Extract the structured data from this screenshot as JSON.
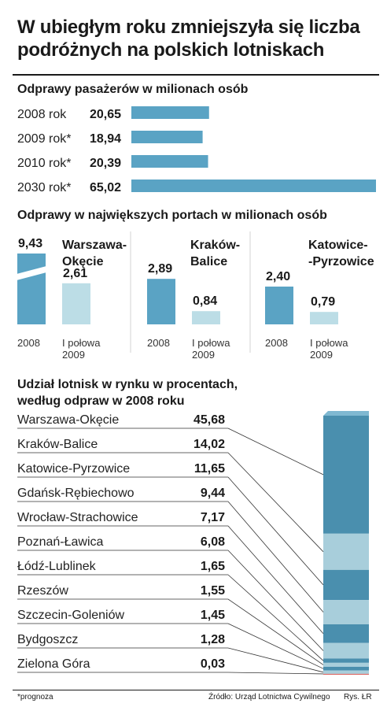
{
  "title": "W ubiegłym roku zmniejszyła się liczba podróżnych na polskich lotniskach",
  "colors": {
    "bar": "#5aa3c4",
    "bar_light": "#bcdde6",
    "stack_dark": "#4a8fae",
    "stack_light": "#a8cedb",
    "divider": "#d3d3d3"
  },
  "chart_data": [
    {
      "type": "bar",
      "title": "Odprawy pasażerów w milionach osób",
      "categories": [
        "2008 rok",
        "2009 rok*",
        "2010 rok*",
        "2030 rok*"
      ],
      "values": [
        20.65,
        18.94,
        20.39,
        65.02
      ],
      "value_labels": [
        "20,65",
        "18,94",
        "20,39",
        "65,02"
      ]
    },
    {
      "type": "bar",
      "title": "Odprawy w największych portach w milionach osób",
      "groups": [
        {
          "name": "Warszawa-Okęcie",
          "name_lines": [
            "Warszawa-",
            "Okęcie"
          ],
          "values": [
            9.43,
            2.61
          ],
          "value_labels": [
            "9,43",
            "2,61"
          ],
          "broken_axis": true
        },
        {
          "name": "Kraków-Balice",
          "name_lines": [
            "Kraków-",
            "Balice"
          ],
          "values": [
            2.89,
            0.84
          ],
          "value_labels": [
            "2,89",
            "0,84"
          ]
        },
        {
          "name": "Katowice-Pyrzowice",
          "name_lines": [
            "Katowice-",
            "-Pyrzowice"
          ],
          "values": [
            2.4,
            0.79
          ],
          "value_labels": [
            "2,40",
            "0,79"
          ]
        }
      ],
      "x_labels": [
        [
          "2008"
        ],
        [
          "I połowa",
          "2009"
        ]
      ]
    },
    {
      "type": "bar",
      "stacked": true,
      "title": "Udział lotnisk w rynku w procentach, według odpraw w 2008 roku",
      "title_lines": [
        "Udział lotnisk w rynku w procentach,",
        "według odpraw w 2008 roku"
      ],
      "categories": [
        "Warszawa-Okęcie",
        "Kraków-Balice",
        "Katowice-Pyrzowice",
        "Gdańsk-Rębiechowo",
        "Wrocław-Strachowice",
        "Poznań-Ławica",
        "Łódź-Lublinek",
        "Rzeszów",
        "Szczecin-Goleniów",
        "Bydgoszcz",
        "Zielona Góra"
      ],
      "values": [
        45.68,
        14.02,
        11.65,
        9.44,
        7.17,
        6.08,
        1.65,
        1.55,
        1.45,
        1.28,
        0.03
      ],
      "value_labels": [
        "45,68",
        "14,02",
        "11,65",
        "9,44",
        "7,17",
        "6,08",
        "1,65",
        "1,55",
        "1,45",
        "1,28",
        "0,03"
      ]
    }
  ],
  "footer": {
    "note": "*prognoza",
    "source": "Źródło: Urząd Lotnictwa Cywilnego",
    "credit": "Rys. ŁR"
  }
}
